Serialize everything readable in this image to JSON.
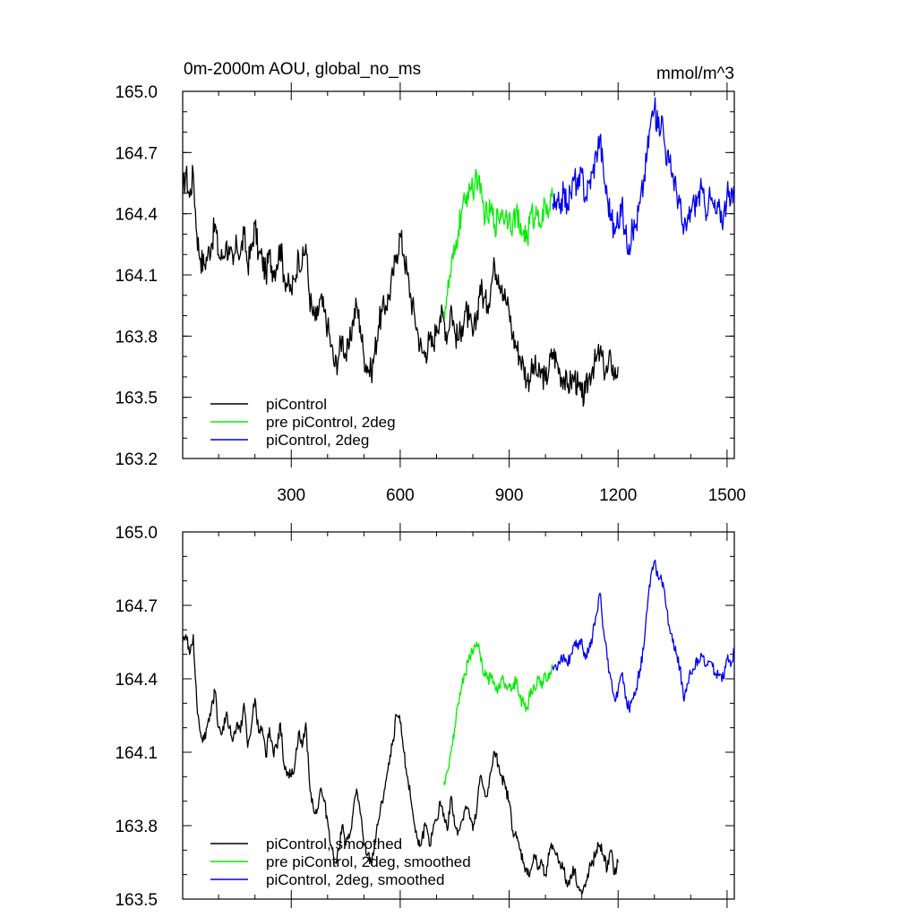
{
  "chart_data": [
    {
      "type": "line",
      "title": "0m-2000m AOU, global_no_ms",
      "units": "mmol/m^3",
      "xlabel": "",
      "ylabel": "",
      "xlim": [
        1,
        1520
      ],
      "ylim": [
        163.2,
        165.0
      ],
      "x_ticks": [
        300,
        600,
        900,
        1200,
        1500
      ],
      "x_tick_labels": [
        "300",
        "600",
        "900",
        "1200",
        "1500"
      ],
      "y_ticks": [
        163.2,
        163.5,
        163.8,
        164.1,
        164.4,
        164.7,
        165.0
      ],
      "y_tick_labels": [
        "163.2",
        "163.5",
        "163.8",
        "164.1",
        "164.4",
        "164.7",
        "165.0"
      ],
      "grid": false,
      "legend_position": "bottom-left",
      "series": [
        {
          "name": "piControl",
          "color": "#000000",
          "x": [
            1,
            10,
            20,
            30,
            40,
            50,
            60,
            70,
            80,
            90,
            100,
            110,
            120,
            130,
            140,
            150,
            160,
            170,
            180,
            190,
            200,
            210,
            220,
            230,
            240,
            250,
            260,
            270,
            280,
            290,
            300,
            310,
            320,
            330,
            340,
            350,
            360,
            370,
            380,
            390,
            400,
            410,
            420,
            430,
            440,
            450,
            460,
            470,
            480,
            490,
            500,
            510,
            520,
            530,
            540,
            550,
            560,
            570,
            580,
            590,
            600,
            610,
            620,
            630,
            640,
            650,
            660,
            670,
            680,
            690,
            700,
            710,
            720,
            730,
            740,
            750,
            760,
            770,
            780,
            790,
            800,
            810,
            820,
            830,
            840,
            850,
            860,
            870,
            880,
            890,
            900,
            910,
            920,
            930,
            940,
            950,
            960,
            970,
            980,
            990,
            1000,
            1010,
            1020,
            1030,
            1040,
            1050,
            1060,
            1070,
            1080,
            1090,
            1100,
            1110,
            1120,
            1130,
            1140,
            1150,
            1160,
            1170,
            1180,
            1190,
            1200
          ],
          "values": [
            164.5,
            164.6,
            164.48,
            164.6,
            164.3,
            164.18,
            164.15,
            164.2,
            164.25,
            164.35,
            164.2,
            164.18,
            164.25,
            164.2,
            164.15,
            164.25,
            164.2,
            164.3,
            164.15,
            164.22,
            164.35,
            164.2,
            164.18,
            164.1,
            164.2,
            164.12,
            164.15,
            164.25,
            164.1,
            164.05,
            164.02,
            164.08,
            164.2,
            164.15,
            164.25,
            164.0,
            163.9,
            163.88,
            163.98,
            163.92,
            163.85,
            163.75,
            163.65,
            163.7,
            163.8,
            163.7,
            163.75,
            163.88,
            163.95,
            163.85,
            163.7,
            163.65,
            163.62,
            163.72,
            163.85,
            163.92,
            163.95,
            164.0,
            164.1,
            164.2,
            164.3,
            164.2,
            164.1,
            163.98,
            163.9,
            163.8,
            163.72,
            163.72,
            163.78,
            163.75,
            163.85,
            163.9,
            163.88,
            163.8,
            163.95,
            163.82,
            163.78,
            163.85,
            163.92,
            163.88,
            163.8,
            163.88,
            164.05,
            163.98,
            163.95,
            164.05,
            164.15,
            164.1,
            164.05,
            163.98,
            163.92,
            163.8,
            163.75,
            163.7,
            163.65,
            163.58,
            163.62,
            163.65,
            163.6,
            163.62,
            163.58,
            163.65,
            163.72,
            163.68,
            163.62,
            163.6,
            163.55,
            163.58,
            163.6,
            163.55,
            163.5,
            163.52,
            163.6,
            163.65,
            163.68,
            163.72,
            163.65,
            163.62,
            163.7,
            163.6,
            163.65
          ]
        },
        {
          "name": "pre piControl, 2deg",
          "color": "#00ee00",
          "x": [
            720,
            730,
            740,
            750,
            760,
            770,
            780,
            790,
            800,
            810,
            820,
            830,
            840,
            850,
            860,
            870,
            880,
            890,
            900,
            910,
            920,
            930,
            940,
            950,
            960,
            970,
            980,
            990,
            1000,
            1010,
            1020
          ],
          "values": [
            163.92,
            164.0,
            164.12,
            164.2,
            164.32,
            164.42,
            164.45,
            164.55,
            164.5,
            164.6,
            164.5,
            164.42,
            164.38,
            164.42,
            164.35,
            164.38,
            164.42,
            164.38,
            164.4,
            164.35,
            164.42,
            164.3,
            164.32,
            164.28,
            164.4,
            164.38,
            164.42,
            164.35,
            164.45,
            164.42,
            164.48
          ]
        },
        {
          "name": "piControl, 2deg",
          "color": "#0000ee",
          "x": [
            1020,
            1030,
            1040,
            1050,
            1060,
            1070,
            1080,
            1090,
            1100,
            1110,
            1120,
            1130,
            1140,
            1150,
            1160,
            1170,
            1180,
            1190,
            1200,
            1210,
            1220,
            1230,
            1240,
            1250,
            1260,
            1270,
            1280,
            1290,
            1300,
            1310,
            1320,
            1330,
            1340,
            1350,
            1360,
            1370,
            1380,
            1390,
            1400,
            1410,
            1420,
            1430,
            1440,
            1450,
            1460,
            1470,
            1480,
            1490,
            1500,
            1510,
            1520
          ],
          "values": [
            164.45,
            164.42,
            164.45,
            164.5,
            164.45,
            164.5,
            164.58,
            164.52,
            164.6,
            164.48,
            164.55,
            164.6,
            164.7,
            164.78,
            164.6,
            164.48,
            164.4,
            164.3,
            164.35,
            164.45,
            164.3,
            164.25,
            164.32,
            164.35,
            164.45,
            164.55,
            164.7,
            164.85,
            164.92,
            164.82,
            164.88,
            164.72,
            164.65,
            164.6,
            164.52,
            164.45,
            164.3,
            164.35,
            164.42,
            164.45,
            164.48,
            164.52,
            164.42,
            164.48,
            164.45,
            164.4,
            164.42,
            164.38,
            164.5,
            164.45,
            164.52
          ]
        }
      ],
      "legend": [
        "piControl",
        "pre piControl, 2deg",
        "piControl, 2deg"
      ]
    },
    {
      "type": "line",
      "title": "",
      "xlabel": "",
      "ylabel": "",
      "xlim": [
        1,
        1520
      ],
      "ylim": [
        163.5,
        165.0
      ],
      "y_ticks": [
        163.5,
        163.8,
        164.1,
        164.4,
        164.7,
        165.0
      ],
      "y_tick_labels": [
        "163.5",
        "163.8",
        "164.1",
        "164.4",
        "164.7",
        "165.0"
      ],
      "grid": false,
      "legend_position": "bottom-left",
      "series": [
        {
          "name": "piControl, smoothed",
          "color": "#000000",
          "x": [
            1,
            10,
            20,
            30,
            40,
            50,
            60,
            70,
            80,
            90,
            100,
            110,
            120,
            130,
            140,
            150,
            160,
            170,
            180,
            190,
            200,
            210,
            220,
            230,
            240,
            250,
            260,
            270,
            280,
            290,
            300,
            310,
            320,
            330,
            340,
            350,
            360,
            370,
            380,
            390,
            400,
            410,
            420,
            430,
            440,
            450,
            460,
            470,
            480,
            490,
            500,
            510,
            520,
            530,
            540,
            550,
            560,
            570,
            580,
            590,
            600,
            610,
            620,
            630,
            640,
            650,
            660,
            670,
            680,
            690,
            700,
            710,
            720,
            730,
            740,
            750,
            760,
            770,
            780,
            790,
            800,
            810,
            820,
            830,
            840,
            850,
            860,
            870,
            880,
            890,
            900,
            910,
            920,
            930,
            940,
            950,
            960,
            970,
            980,
            990,
            1000,
            1010,
            1020,
            1030,
            1040,
            1050,
            1060,
            1070,
            1080,
            1090,
            1100,
            1110,
            1120,
            1130,
            1140,
            1150,
            1160,
            1170,
            1180,
            1190,
            1200
          ],
          "values": [
            164.55,
            164.58,
            164.5,
            164.58,
            164.3,
            164.18,
            164.15,
            164.22,
            164.28,
            164.35,
            164.2,
            164.18,
            164.25,
            164.2,
            164.15,
            164.22,
            164.18,
            164.3,
            164.12,
            164.2,
            164.32,
            164.18,
            164.2,
            164.08,
            164.2,
            164.1,
            164.12,
            164.22,
            164.05,
            164.02,
            164.0,
            164.05,
            164.18,
            164.12,
            164.22,
            163.98,
            163.88,
            163.85,
            163.95,
            163.9,
            163.82,
            163.72,
            163.65,
            163.7,
            163.8,
            163.72,
            163.75,
            163.85,
            163.95,
            163.85,
            163.72,
            163.68,
            163.65,
            163.72,
            163.82,
            163.9,
            163.98,
            164.05,
            164.15,
            164.25,
            164.22,
            164.1,
            164.0,
            163.9,
            163.8,
            163.72,
            163.75,
            163.8,
            163.72,
            163.78,
            163.82,
            163.9,
            163.85,
            163.78,
            163.92,
            163.8,
            163.78,
            163.82,
            163.88,
            163.85,
            163.78,
            163.85,
            164.0,
            163.95,
            163.92,
            164.02,
            164.1,
            164.05,
            164.0,
            163.95,
            163.9,
            163.78,
            163.75,
            163.7,
            163.65,
            163.6,
            163.62,
            163.68,
            163.62,
            163.65,
            163.6,
            163.68,
            163.72,
            163.68,
            163.65,
            163.62,
            163.55,
            163.6,
            163.62,
            163.55,
            163.52,
            163.55,
            163.62,
            163.65,
            163.7,
            163.72,
            163.68,
            163.62,
            163.7,
            163.6,
            163.65
          ]
        },
        {
          "name": "pre piControl, 2deg, smoothed",
          "color": "#00ee00",
          "x": [
            720,
            730,
            740,
            750,
            760,
            770,
            780,
            790,
            800,
            810,
            820,
            830,
            840,
            850,
            860,
            870,
            880,
            890,
            900,
            910,
            920,
            930,
            940,
            950,
            960,
            970,
            980,
            990,
            1000,
            1010,
            1020
          ],
          "values": [
            163.98,
            164.02,
            164.1,
            164.2,
            164.3,
            164.38,
            164.42,
            164.5,
            164.5,
            164.55,
            164.5,
            164.42,
            164.4,
            164.4,
            164.38,
            164.36,
            164.4,
            164.38,
            164.38,
            164.36,
            164.4,
            164.32,
            164.3,
            164.28,
            164.36,
            164.36,
            164.4,
            164.36,
            164.42,
            164.4,
            164.46
          ]
        },
        {
          "name": "piControl, 2deg, smoothed",
          "color": "#0000ee",
          "x": [
            1020,
            1030,
            1040,
            1050,
            1060,
            1070,
            1080,
            1090,
            1100,
            1110,
            1120,
            1130,
            1140,
            1150,
            1160,
            1170,
            1180,
            1190,
            1200,
            1210,
            1220,
            1230,
            1240,
            1250,
            1260,
            1270,
            1280,
            1290,
            1300,
            1310,
            1320,
            1330,
            1340,
            1350,
            1360,
            1370,
            1380,
            1390,
            1400,
            1410,
            1420,
            1430,
            1440,
            1450,
            1460,
            1470,
            1480,
            1490,
            1500,
            1510,
            1520
          ],
          "values": [
            164.45,
            164.44,
            164.46,
            164.5,
            164.46,
            164.5,
            164.55,
            164.52,
            164.56,
            164.48,
            164.52,
            164.58,
            164.66,
            164.75,
            164.6,
            164.48,
            164.4,
            164.32,
            164.35,
            164.42,
            164.32,
            164.28,
            164.32,
            164.36,
            164.44,
            164.52,
            164.68,
            164.82,
            164.88,
            164.82,
            164.8,
            164.72,
            164.62,
            164.55,
            164.5,
            164.45,
            164.32,
            164.38,
            164.42,
            164.44,
            164.48,
            164.5,
            164.45,
            164.47,
            164.45,
            164.42,
            164.42,
            164.4,
            164.48,
            164.45,
            164.52
          ]
        }
      ],
      "legend": [
        "piControl, smoothed",
        "pre piControl, 2deg, smoothed",
        "piControl, 2deg, smoothed"
      ]
    }
  ]
}
